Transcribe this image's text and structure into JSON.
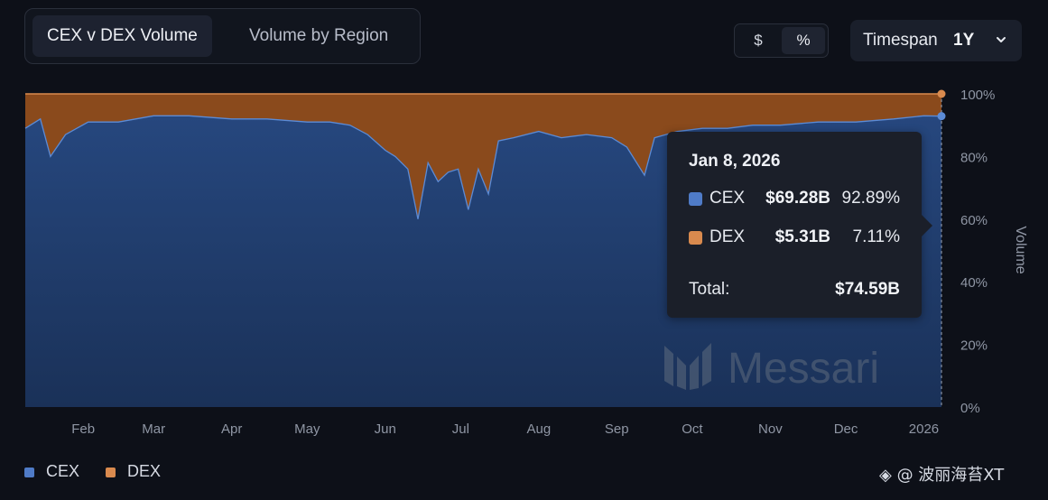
{
  "tabs": [
    {
      "label": "CEX v DEX Volume",
      "active": true
    },
    {
      "label": "Volume by Region",
      "active": false
    }
  ],
  "unit_toggle": {
    "dollar": "$",
    "percent": "%",
    "selected": "%"
  },
  "timespan": {
    "label": "Timespan",
    "value": "1Y"
  },
  "watermark": "Messari",
  "tooltip": {
    "date": "Jan 8, 2026",
    "rows": [
      {
        "name": "CEX",
        "amount": "$69.28B",
        "percent": "92.89%"
      },
      {
        "name": "DEX",
        "amount": "$5.31B",
        "percent": "7.11%"
      }
    ],
    "total_label": "Total:",
    "total_value": "$74.59B"
  },
  "legend": [
    {
      "name": "CEX",
      "color": "#4f7bc7"
    },
    {
      "name": "DEX",
      "color": "#d98a4e"
    }
  ],
  "credit": "◈ @ 波丽海苔XT",
  "colors": {
    "cex_fill": "#1f3c6c",
    "cex_line": "#5b8bd6",
    "dex_fill": "#8a4a1c",
    "dex_line": "#d98a4e",
    "background": "#0d1018"
  },
  "chart_data": {
    "type": "area",
    "stacked": true,
    "normalized": true,
    "ylabel": "Volume",
    "ylim": [
      0,
      100
    ],
    "yticks": [
      "0%",
      "20%",
      "40%",
      "60%",
      "80%",
      "100%"
    ],
    "xticks": [
      "Feb",
      "Mar",
      "Apr",
      "May",
      "Jun",
      "Jul",
      "Aug",
      "Sep",
      "Oct",
      "Nov",
      "Dec",
      "2026"
    ],
    "x_start": "2025-01-09",
    "x_end": "2026-01-08",
    "series": [
      {
        "name": "CEX",
        "x": [
          "2025-01-09",
          "2025-01-15",
          "2025-01-19",
          "2025-01-25",
          "2025-02-03",
          "2025-02-15",
          "2025-03-01",
          "2025-03-15",
          "2025-04-01",
          "2025-04-15",
          "2025-05-01",
          "2025-05-10",
          "2025-05-18",
          "2025-05-25",
          "2025-06-01",
          "2025-06-05",
          "2025-06-10",
          "2025-06-14",
          "2025-06-18",
          "2025-06-22",
          "2025-06-26",
          "2025-06-30",
          "2025-07-04",
          "2025-07-08",
          "2025-07-12",
          "2025-07-16",
          "2025-07-22",
          "2025-08-01",
          "2025-08-10",
          "2025-08-20",
          "2025-08-30",
          "2025-09-05",
          "2025-09-12",
          "2025-09-16",
          "2025-09-25",
          "2025-10-05",
          "2025-10-15",
          "2025-10-25",
          "2025-11-05",
          "2025-11-20",
          "2025-12-05",
          "2025-12-20",
          "2026-01-01",
          "2026-01-08"
        ],
        "values": [
          89,
          92,
          80,
          87,
          91,
          91,
          93,
          93,
          92,
          92,
          91,
          91,
          90,
          87,
          82,
          80,
          76,
          60,
          78,
          72,
          75,
          76,
          63,
          76,
          68,
          85,
          86,
          88,
          86,
          87,
          86,
          83,
          74,
          86,
          88,
          89,
          89,
          90,
          90,
          91,
          91,
          92,
          93,
          92.89
        ]
      },
      {
        "name": "DEX",
        "x": [
          "2025-01-09",
          "2025-01-15",
          "2025-01-19",
          "2025-01-25",
          "2025-02-03",
          "2025-02-15",
          "2025-03-01",
          "2025-03-15",
          "2025-04-01",
          "2025-04-15",
          "2025-05-01",
          "2025-05-10",
          "2025-05-18",
          "2025-05-25",
          "2025-06-01",
          "2025-06-05",
          "2025-06-10",
          "2025-06-14",
          "2025-06-18",
          "2025-06-22",
          "2025-06-26",
          "2025-06-30",
          "2025-07-04",
          "2025-07-08",
          "2025-07-12",
          "2025-07-16",
          "2025-07-22",
          "2025-08-01",
          "2025-08-10",
          "2025-08-20",
          "2025-08-30",
          "2025-09-05",
          "2025-09-12",
          "2025-09-16",
          "2025-09-25",
          "2025-10-05",
          "2025-10-15",
          "2025-10-25",
          "2025-11-05",
          "2025-11-20",
          "2025-12-05",
          "2025-12-20",
          "2026-01-01",
          "2026-01-08"
        ],
        "values": [
          11,
          8,
          20,
          13,
          9,
          9,
          7,
          7,
          8,
          8,
          9,
          9,
          10,
          13,
          18,
          20,
          24,
          40,
          22,
          28,
          25,
          24,
          37,
          24,
          32,
          15,
          14,
          12,
          14,
          13,
          14,
          17,
          26,
          14,
          12,
          11,
          11,
          10,
          10,
          9,
          9,
          8,
          7,
          7.11
        ]
      }
    ]
  }
}
